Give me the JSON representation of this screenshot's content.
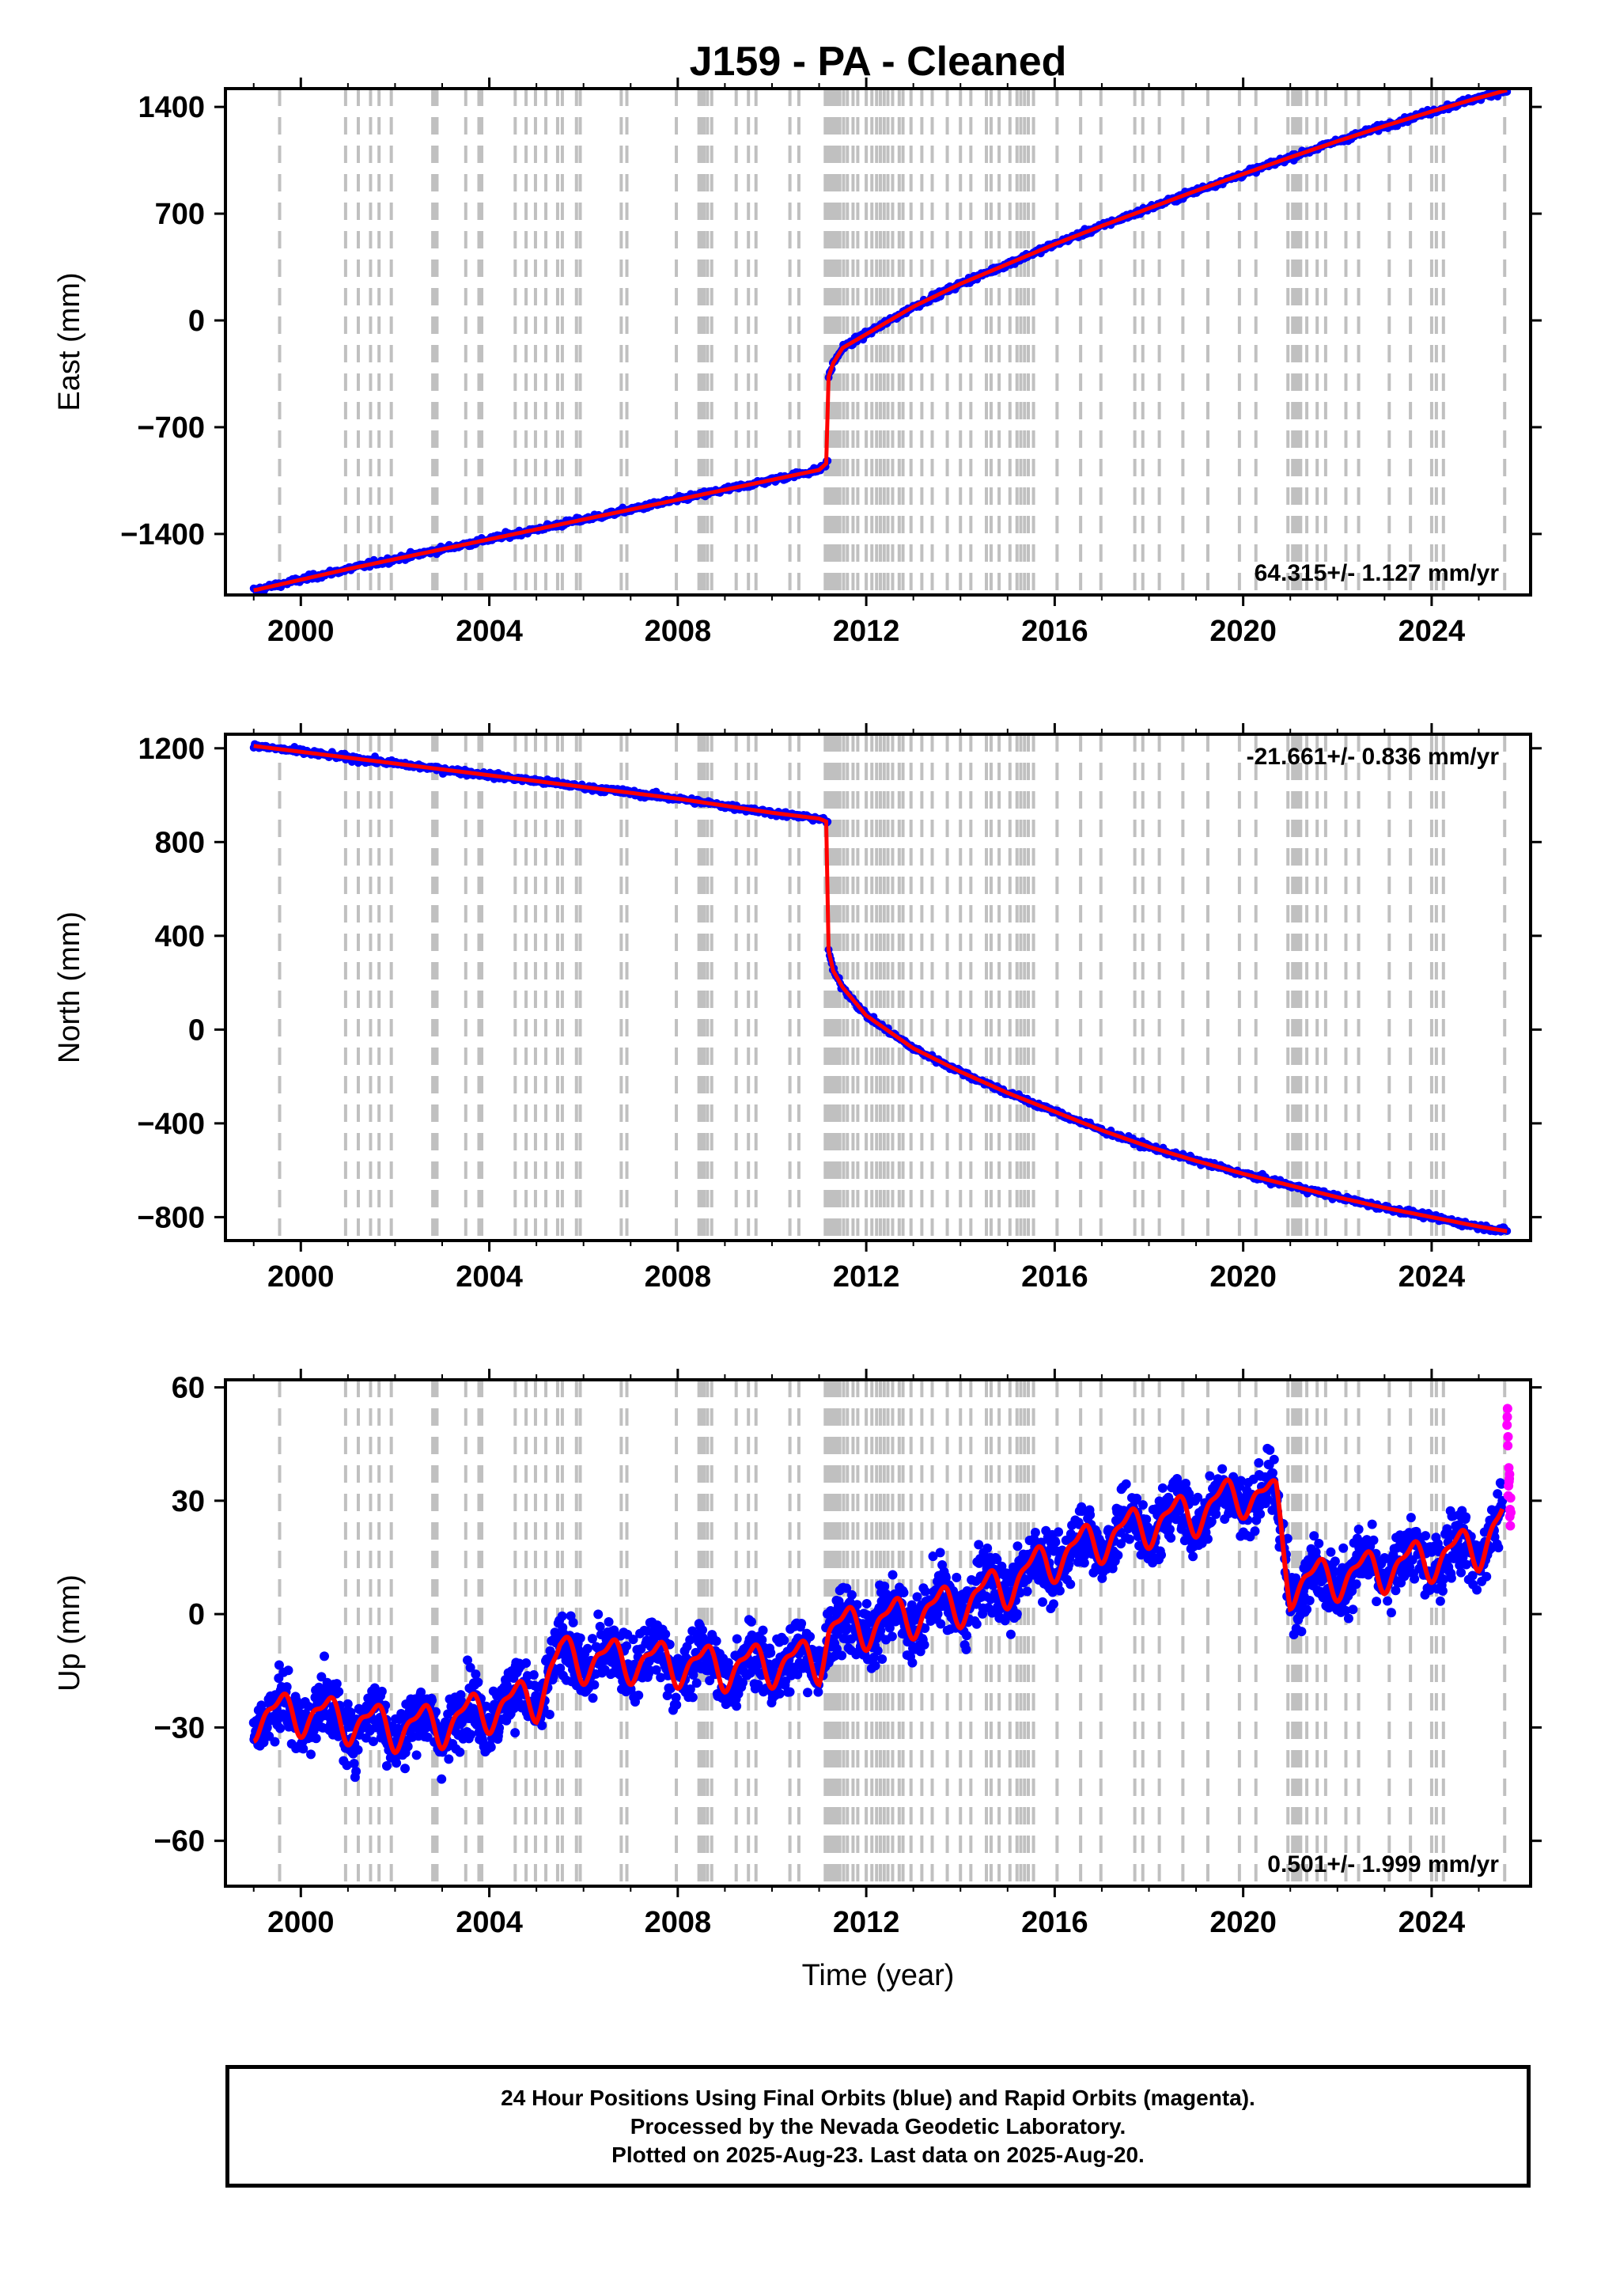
{
  "chart_data": [
    {
      "type": "scatter",
      "title": "J159  - PA - Cleaned",
      "ylabel": "East (mm)",
      "xlabel": "",
      "xlim": [
        1998.4,
        2026.1
      ],
      "ylim": [
        -1800,
        1520
      ],
      "x_ticks": [
        2000,
        2004,
        2008,
        2012,
        2016,
        2020,
        2024
      ],
      "y_ticks": [
        1400,
        700,
        0,
        -700,
        -1400
      ],
      "rate_annotation": "64.315+/- 1.127 mm/yr",
      "series": [
        {
          "color": "#0000ff",
          "x": [
            1999.0,
            2000.0,
            2001.0,
            2002.0,
            2003.0,
            2004.0,
            2005.0,
            2006.0,
            2007.0,
            2008.0,
            2009.0,
            2010.0,
            2011.0,
            2011.18,
            2011.2,
            2011.3,
            2011.5,
            2012.0,
            2013.0,
            2014.0,
            2015.0,
            2016.0,
            2017.0,
            2018.0,
            2019.0,
            2020.0,
            2021.0,
            2022.0,
            2023.0,
            2024.0,
            2025.0,
            2025.6
          ],
          "y": [
            -1770,
            -1700,
            -1630,
            -1565,
            -1500,
            -1435,
            -1370,
            -1305,
            -1240,
            -1175,
            -1110,
            -1045,
            -980,
            -930,
            -370,
            -280,
            -180,
            -90,
            90,
            240,
            370,
            500,
            620,
            735,
            850,
            960,
            1070,
            1175,
            1275,
            1370,
            1460,
            1510
          ]
        }
      ],
      "step_events": [
        2011.19
      ]
    },
    {
      "type": "scatter",
      "title": "",
      "ylabel": "North (mm)",
      "xlabel": "",
      "xlim": [
        1998.4,
        2026.1
      ],
      "ylim": [
        -900,
        1260
      ],
      "x_ticks": [
        2000,
        2004,
        2008,
        2012,
        2016,
        2020,
        2024
      ],
      "y_ticks": [
        1200,
        800,
        400,
        0,
        -400,
        -800
      ],
      "rate_annotation": "-21.661+/- 0.836 mm/yr",
      "series": [
        {
          "color": "#0000ff",
          "x": [
            1999.0,
            2000.0,
            2001.0,
            2002.0,
            2003.0,
            2004.0,
            2005.0,
            2006.0,
            2007.0,
            2008.0,
            2009.0,
            2010.0,
            2011.0,
            2011.18,
            2011.2,
            2011.3,
            2011.5,
            2012.0,
            2013.0,
            2014.0,
            2015.0,
            2016.0,
            2017.0,
            2018.0,
            2019.0,
            2020.0,
            2021.0,
            2022.0,
            2023.0,
            2024.0,
            2025.0,
            2025.6
          ],
          "y": [
            1210,
            1185,
            1160,
            1135,
            1110,
            1085,
            1060,
            1035,
            1010,
            985,
            955,
            925,
            900,
            885,
            340,
            250,
            180,
            60,
            -80,
            -180,
            -270,
            -350,
            -430,
            -500,
            -560,
            -615,
            -665,
            -715,
            -760,
            -800,
            -840,
            -860
          ]
        }
      ],
      "step_events": [
        2011.19
      ]
    },
    {
      "type": "scatter",
      "title": "",
      "ylabel": "Up (mm)",
      "xlabel": "Time (year)",
      "xlim": [
        1998.4,
        2026.1
      ],
      "ylim": [
        -72,
        62
      ],
      "x_ticks": [
        2000,
        2004,
        2008,
        2012,
        2016,
        2020,
        2024
      ],
      "y_ticks": [
        60,
        30,
        0,
        -30,
        -60
      ],
      "rate_annotation": "0.501+/- 1.999 mm/yr",
      "series": [
        {
          "color": "#0000ff",
          "x": [
            1999.0,
            2000.0,
            2001.0,
            2002.0,
            2003.0,
            2004.0,
            2005.0,
            2005.5,
            2006.0,
            2007.0,
            2008.0,
            2009.0,
            2010.0,
            2011.0,
            2011.2,
            2012.0,
            2013.0,
            2014.0,
            2015.0,
            2016.0,
            2017.0,
            2018.0,
            2019.0,
            2020.0,
            2020.7,
            2021.0,
            2022.0,
            2023.0,
            2024.0,
            2025.0,
            2025.5
          ],
          "y": [
            -27,
            -26,
            -28,
            -30,
            -29,
            -25,
            -22,
            -11,
            -12,
            -12,
            -13,
            -14,
            -13,
            -12,
            -4,
            -3,
            0,
            3,
            8,
            15,
            20,
            24,
            27,
            32,
            30,
            8,
            10,
            12,
            15,
            18,
            25
          ]
        },
        {
          "name": "Rapid Orbits",
          "color": "#ff00ff",
          "x": [
            2025.6,
            2025.62,
            2025.64,
            2025.66,
            2025.68
          ],
          "y": [
            55,
            43,
            38,
            30,
            25
          ]
        }
      ],
      "step_events": [
        2011.19
      ]
    }
  ],
  "event_lines": [
    1999.55,
    2000.95,
    2001.22,
    2001.48,
    2001.66,
    2001.92,
    2002.8,
    2002.83,
    2002.86,
    2002.89,
    2003.5,
    2003.78,
    2003.84,
    2004.55,
    2004.78,
    2004.98,
    2005.2,
    2005.45,
    2005.55,
    2005.85,
    2005.93,
    2006.8,
    2006.92,
    2007.97,
    2008.45,
    2008.5,
    2008.56,
    2008.63,
    2008.72,
    2009.24,
    2009.5,
    2009.66,
    2010.38,
    2010.57,
    2011.13,
    2011.16,
    2011.19,
    2011.22,
    2011.25,
    2011.28,
    2011.31,
    2011.34,
    2011.38,
    2011.44,
    2011.52,
    2011.6,
    2011.72,
    2011.82,
    2012.0,
    2012.12,
    2012.22,
    2012.3,
    2012.38,
    2012.46,
    2012.56,
    2012.7,
    2012.78,
    2012.95,
    2013.18,
    2013.4,
    2013.72,
    2014.0,
    2014.22,
    2014.55,
    2014.65,
    2014.82,
    2015.05,
    2015.2,
    2015.28,
    2015.36,
    2015.44,
    2015.55,
    2016.05,
    2016.55,
    2016.98,
    2017.7,
    2017.87,
    2018.22,
    2018.72,
    2019.25,
    2019.92,
    2020.27,
    2020.95,
    2021.05,
    2021.1,
    2021.16,
    2021.22,
    2021.35,
    2021.57,
    2021.75,
    2022.18,
    2022.45,
    2023.1,
    2023.55,
    2024.0,
    2024.1,
    2024.25,
    2025.55
  ],
  "footer": {
    "line1": "24 Hour Positions Using Final Orbits (blue) and Rapid Orbits (magenta).",
    "line2": "Processed by the Nevada Geodetic Laboratory.",
    "line3": "Plotted on 2025-Aug-23. Last data on 2025-Aug-20."
  },
  "colors": {
    "final_orbits": "#0000ff",
    "rapid_orbits": "#ff00ff",
    "model_fit": "#ff0000",
    "event_lines": "#c0c0c0"
  }
}
